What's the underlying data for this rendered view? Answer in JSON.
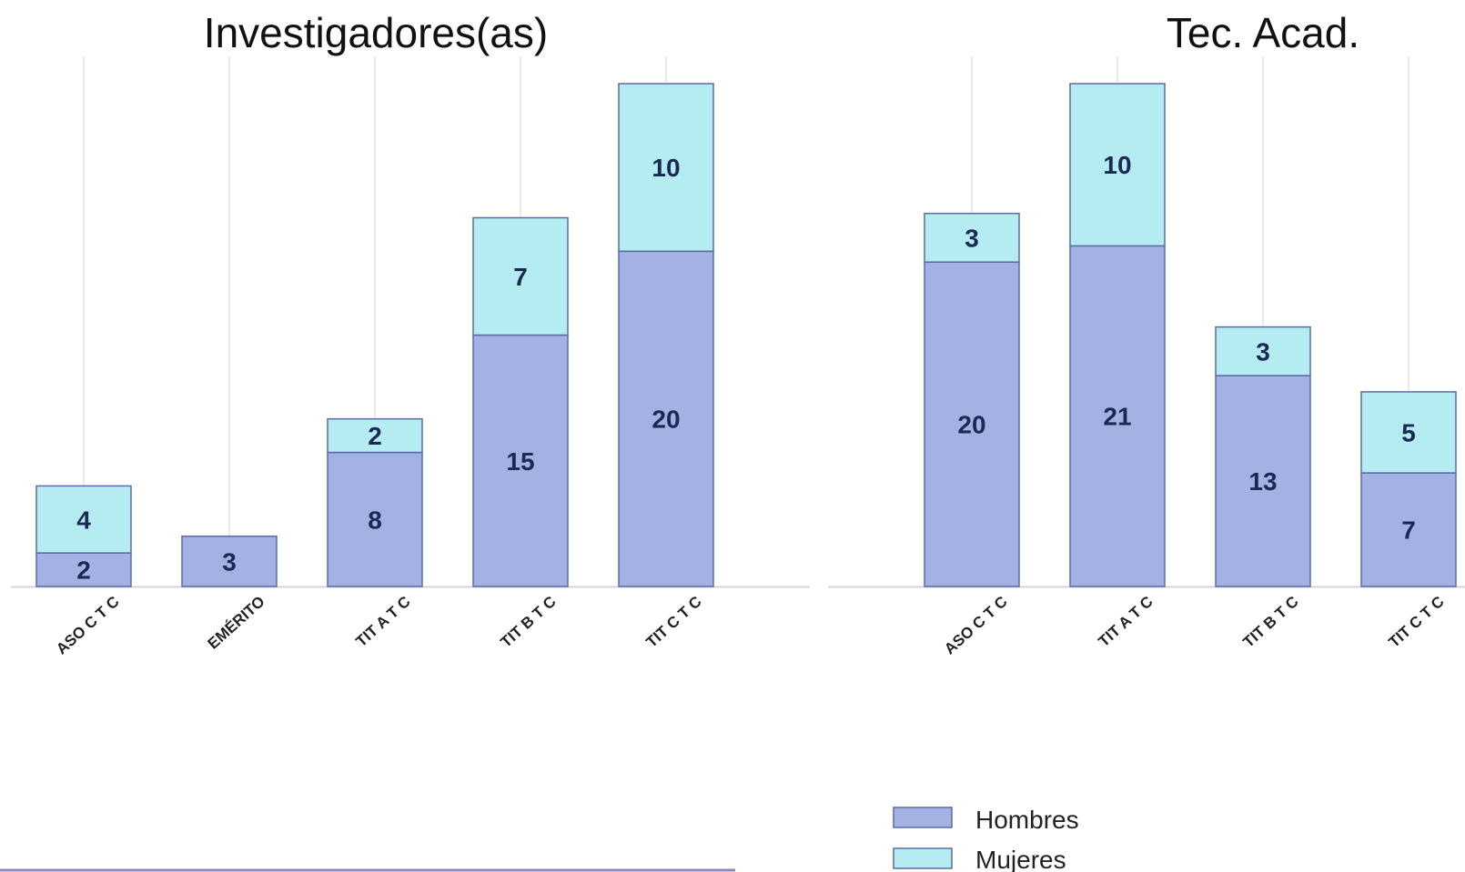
{
  "colors": {
    "hombres": "#a3b1e3",
    "mujeres": "#b5ecf2",
    "bar_border": "#5a6aa8",
    "grid": "#e3e3e3",
    "baseline": "#d6d6d6",
    "bottom_rule": "#8f88c0"
  },
  "legend": {
    "position": "bottom-right",
    "items": [
      {
        "key": "hombres",
        "label": "Hombres"
      },
      {
        "key": "mujeres",
        "label": "Mujeres"
      }
    ]
  },
  "chart_data": [
    {
      "type": "bar",
      "stacked": true,
      "title": "Investigadores(as)",
      "categories": [
        "ASO C T C",
        "EMÉRITO",
        "TIT A T C",
        "TIT B T C",
        "TIT C T C"
      ],
      "series": [
        {
          "name": "Hombres",
          "values": [
            2,
            3,
            8,
            15,
            20
          ]
        },
        {
          "name": "Mujeres",
          "values": [
            4,
            0,
            2,
            7,
            10
          ]
        }
      ],
      "ylim": [
        0,
        30
      ],
      "grid": "vertical"
    },
    {
      "type": "bar",
      "stacked": true,
      "title": "Tec. Acad.",
      "categories": [
        "ASO C T C",
        "TIT A T C",
        "TIT B T C",
        "TIT C T C"
      ],
      "series": [
        {
          "name": "Hombres",
          "values": [
            20,
            21,
            13,
            7
          ]
        },
        {
          "name": "Mujeres",
          "values": [
            3,
            10,
            3,
            5
          ]
        }
      ],
      "ylim": [
        0,
        31
      ],
      "grid": "vertical"
    }
  ]
}
